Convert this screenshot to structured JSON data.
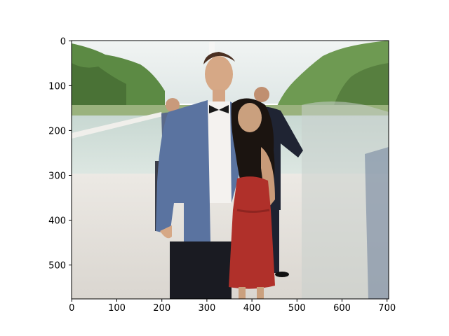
{
  "figure": {
    "image_extent": {
      "width": 704,
      "height": 576
    },
    "x_axis": {
      "ticks": [
        0,
        100,
        200,
        300,
        400,
        500,
        600,
        700
      ]
    },
    "y_axis": {
      "ticks": [
        0,
        100,
        200,
        300,
        400,
        500
      ]
    }
  },
  "scene": {
    "description_icon": "photo-couple-icon",
    "colors": {
      "sky": "#e9eef0",
      "trees": "#5d8a45",
      "water": "#cfdcd8",
      "pavement": "#e7e4df",
      "suit": "#5a73a0",
      "dress": "#b0302a",
      "dark_suit": "#1f2433"
    }
  }
}
